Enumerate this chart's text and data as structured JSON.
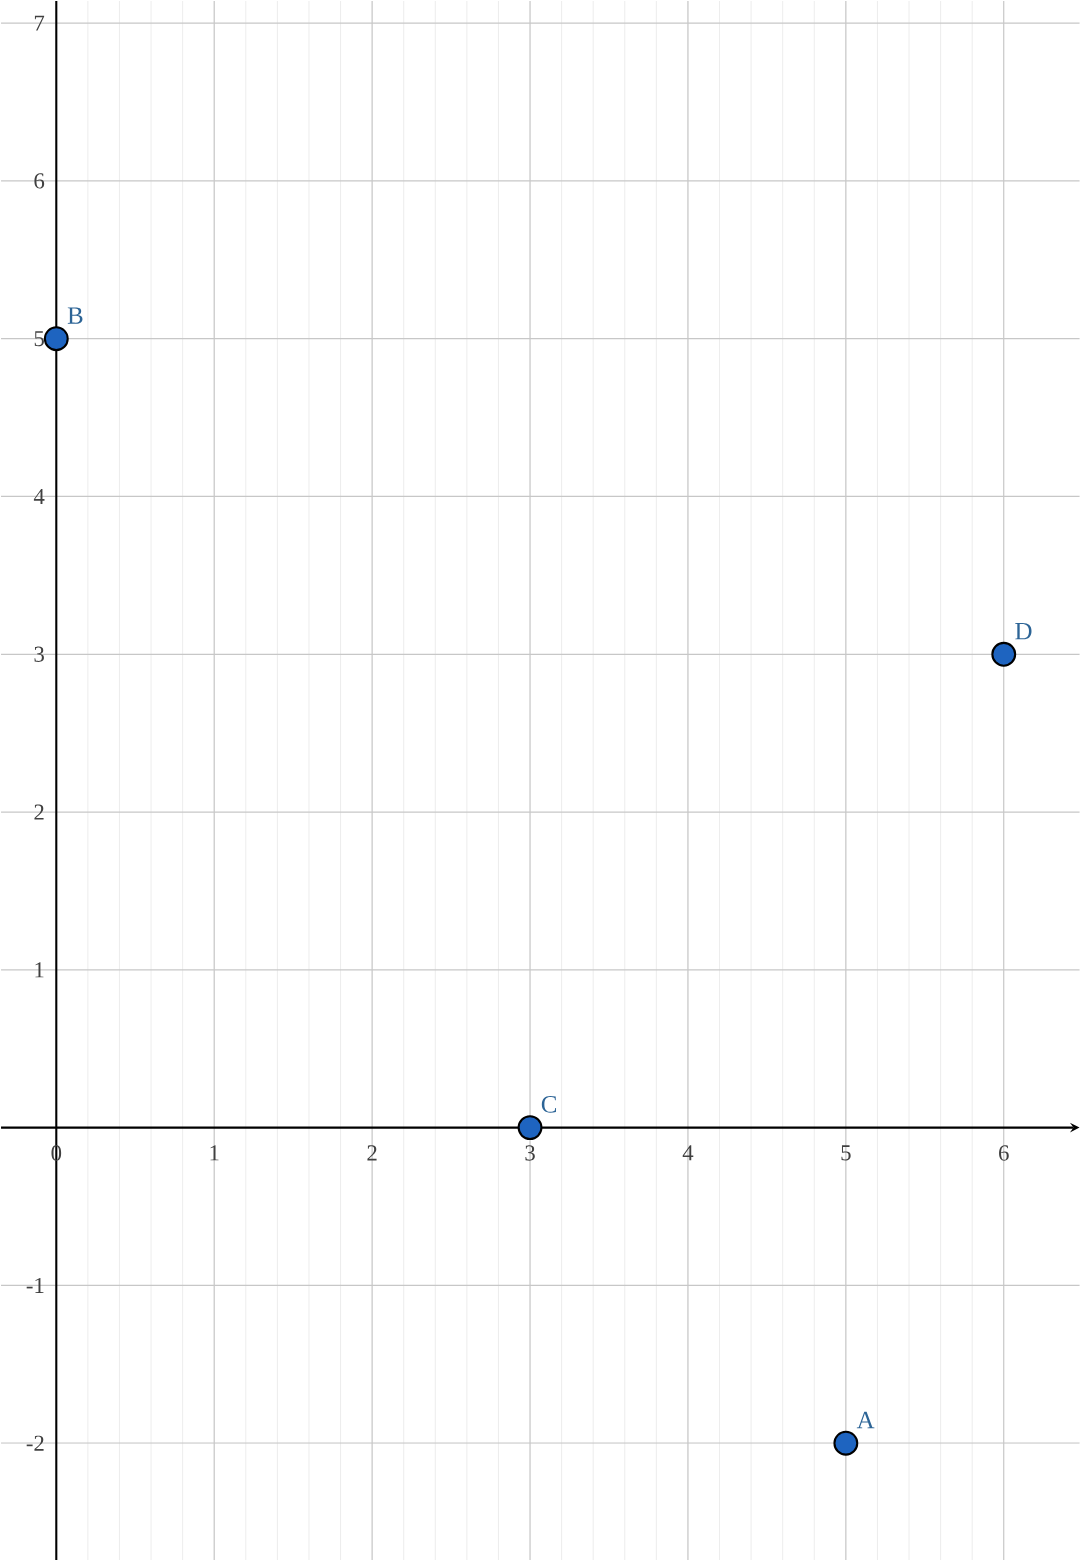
{
  "chart_data": {
    "type": "scatter",
    "x": [
      5,
      0,
      3,
      6
    ],
    "values": [
      -2,
      5,
      0,
      3
    ],
    "color": "#1e64c0",
    "marker": "circle",
    "annotations": [
      {
        "text": "A",
        "x": 5,
        "y": -2
      },
      {
        "text": "B",
        "x": 0,
        "y": 5
      },
      {
        "text": "C",
        "x": 3,
        "y": 0
      },
      {
        "text": "D",
        "x": 6,
        "y": 3
      }
    ],
    "xlim": [
      -0.35,
      6.48
    ],
    "ylim": [
      -2.74,
      7.14
    ],
    "xticks": [
      0,
      1,
      2,
      3,
      4,
      5,
      6
    ],
    "yticks": [
      -2,
      -1,
      1,
      2,
      3,
      4,
      5,
      6,
      7
    ],
    "grid": true
  }
}
